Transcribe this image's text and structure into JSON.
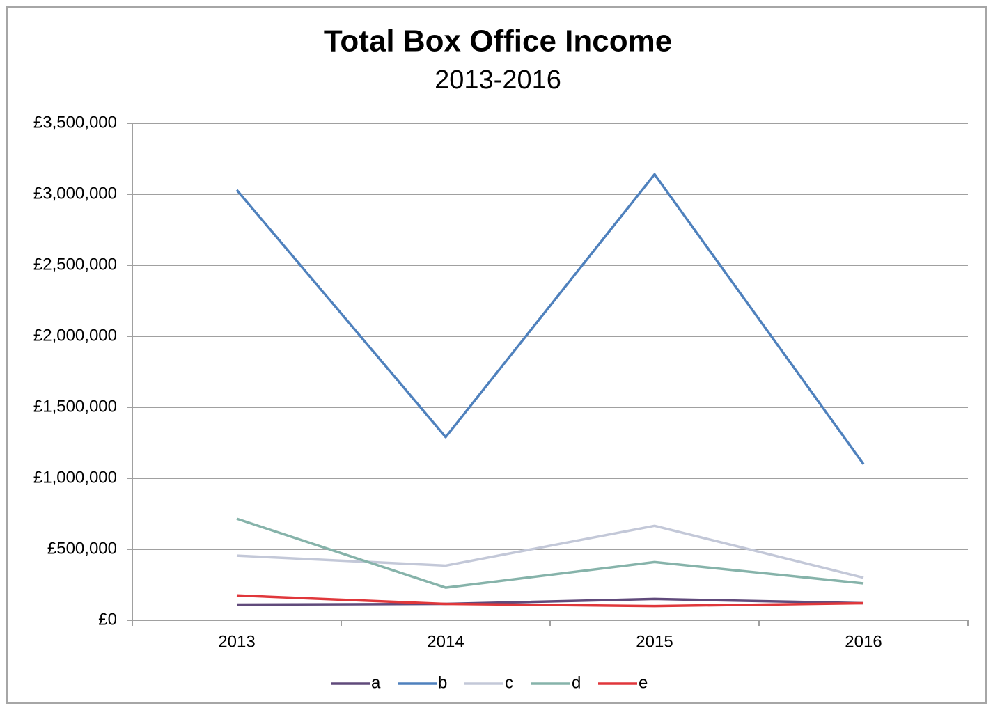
{
  "chart_data": {
    "type": "line",
    "title": "Total Box Office Income",
    "subtitle": "2013-2016",
    "categories": [
      "2013",
      "2014",
      "2015",
      "2016"
    ],
    "series": [
      {
        "name": "a",
        "color": "#604a7b",
        "values": [
          110000,
          115000,
          150000,
          120000
        ]
      },
      {
        "name": "b",
        "color": "#4f81bd",
        "values": [
          3030000,
          1290000,
          3140000,
          1100000
        ]
      },
      {
        "name": "c",
        "color": "#c3c8d8",
        "values": [
          455000,
          385000,
          665000,
          300000
        ]
      },
      {
        "name": "d",
        "color": "#86b3aa",
        "values": [
          715000,
          230000,
          410000,
          260000
        ]
      },
      {
        "name": "e",
        "color": "#e0373b",
        "values": [
          175000,
          115000,
          100000,
          120000
        ]
      }
    ],
    "ylim": [
      0,
      3500000
    ],
    "yticks": [
      {
        "value": 0,
        "label": "£0"
      },
      {
        "value": 500000,
        "label": "£500,000"
      },
      {
        "value": 1000000,
        "label": "£1,000,000"
      },
      {
        "value": 1500000,
        "label": "£1,500,000"
      },
      {
        "value": 2000000,
        "label": "£2,000,000"
      },
      {
        "value": 2500000,
        "label": "£2,500,000"
      },
      {
        "value": 3000000,
        "label": "£3,000,000"
      },
      {
        "value": 3500000,
        "label": "£3,500,000"
      }
    ],
    "grid": true,
    "legend": "bottom"
  }
}
